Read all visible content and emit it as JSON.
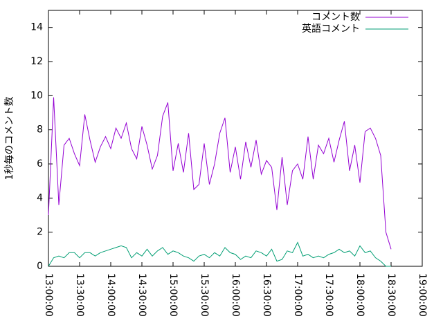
{
  "chart_data": {
    "type": "line",
    "ylabel": "1秒毎のコメント数",
    "x": [
      "13:00:00",
      "13:05:00",
      "13:10:00",
      "13:15:00",
      "13:20:00",
      "13:25:00",
      "13:30:00",
      "13:35:00",
      "13:40:00",
      "13:45:00",
      "13:50:00",
      "13:55:00",
      "14:00:00",
      "14:05:00",
      "14:10:00",
      "14:15:00",
      "14:20:00",
      "14:25:00",
      "14:30:00",
      "14:35:00",
      "14:40:00",
      "14:45:00",
      "14:50:00",
      "14:55:00",
      "15:00:00",
      "15:05:00",
      "15:10:00",
      "15:15:00",
      "15:20:00",
      "15:25:00",
      "15:30:00",
      "15:35:00",
      "15:40:00",
      "15:45:00",
      "15:50:00",
      "15:55:00",
      "16:00:00",
      "16:05:00",
      "16:10:00",
      "16:15:00",
      "16:20:00",
      "16:25:00",
      "16:30:00",
      "16:35:00",
      "16:40:00",
      "16:45:00",
      "16:50:00",
      "16:55:00",
      "17:00:00",
      "17:05:00",
      "17:10:00",
      "17:15:00",
      "17:20:00",
      "17:25:00",
      "17:30:00",
      "17:35:00",
      "17:40:00",
      "17:45:00",
      "17:50:00",
      "17:55:00",
      "18:00:00",
      "18:05:00",
      "18:10:00",
      "18:15:00",
      "18:20:00",
      "18:25:00",
      "18:30:00"
    ],
    "series": [
      {
        "name": "コメント数",
        "color": "#9400d3",
        "values": [
          3.0,
          9.9,
          3.6,
          7.1,
          7.5,
          6.6,
          5.9,
          8.9,
          7.4,
          6.1,
          7.0,
          7.6,
          6.9,
          8.1,
          7.5,
          8.4,
          6.9,
          6.3,
          8.2,
          7.1,
          5.7,
          6.5,
          8.8,
          9.6,
          5.6,
          7.2,
          5.5,
          7.8,
          4.5,
          4.8,
          7.2,
          4.8,
          6.0,
          7.8,
          8.7,
          5.5,
          7.0,
          5.1,
          7.3,
          5.8,
          7.4,
          5.4,
          6.2,
          5.8,
          3.3,
          6.4,
          3.6,
          5.6,
          6.0,
          5.1,
          7.6,
          5.1,
          7.1,
          6.6,
          7.5,
          6.1,
          7.4,
          8.5,
          5.6,
          7.1,
          4.9,
          7.9,
          8.1,
          7.5,
          6.5,
          2.0,
          1.0
        ]
      },
      {
        "name": "英語コメント",
        "color": "#009e73",
        "values": [
          0.0,
          0.5,
          0.6,
          0.5,
          0.8,
          0.8,
          0.5,
          0.8,
          0.8,
          0.6,
          0.8,
          0.9,
          1.0,
          1.1,
          1.2,
          1.1,
          0.5,
          0.8,
          0.6,
          1.0,
          0.6,
          0.9,
          1.1,
          0.7,
          0.9,
          0.8,
          0.6,
          0.5,
          0.3,
          0.6,
          0.7,
          0.5,
          0.8,
          0.6,
          1.1,
          0.8,
          0.7,
          0.4,
          0.6,
          0.5,
          0.9,
          0.8,
          0.6,
          1.0,
          0.3,
          0.4,
          0.9,
          0.8,
          1.4,
          0.6,
          0.7,
          0.5,
          0.6,
          0.5,
          0.7,
          0.8,
          1.0,
          0.8,
          0.9,
          0.6,
          1.2,
          0.8,
          0.9,
          0.5,
          0.3,
          0.0,
          0.0
        ]
      }
    ],
    "xlim": [
      "13:00:00",
      "19:00:00"
    ],
    "xticks": [
      "13:00:00",
      "13:30:00",
      "14:00:00",
      "14:30:00",
      "15:00:00",
      "15:30:00",
      "16:00:00",
      "16:30:00",
      "17:00:00",
      "17:30:00",
      "18:00:00",
      "18:30:00",
      "19:00:00"
    ],
    "ylim": [
      0,
      15
    ],
    "yticks": [
      0,
      2,
      4,
      6,
      8,
      10,
      12,
      14
    ],
    "legend": "top-right"
  }
}
